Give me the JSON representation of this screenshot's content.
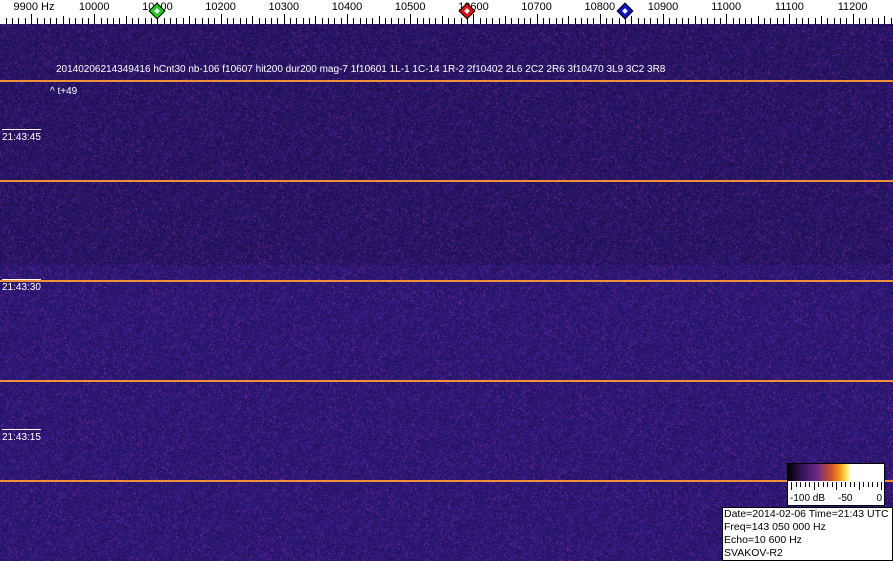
{
  "ruler": {
    "unit_label": "9900 Hz",
    "tick_labels": [
      "10000",
      "10100",
      "10200",
      "10300",
      "10400",
      "10500",
      "10600",
      "10700",
      "10800",
      "10900",
      "11000",
      "11100",
      "11200"
    ],
    "markers": [
      {
        "name": "green-marker",
        "freq_hz": 10100,
        "color": "#22cc22"
      },
      {
        "name": "red-marker",
        "freq_hz": 10590,
        "color": "#dd1111"
      },
      {
        "name": "blue-marker",
        "freq_hz": 10840,
        "color": "#1111cc"
      }
    ]
  },
  "spectrogram": {
    "detection_line": "20140206214349416 hCnt30 nb-106 f10607 hit200 dur200 mag-7 1f10601 1L-1 1C-14 1R-2 2f10402 2L6 2C2 2R6 3f10470 3L9 3C2 3R8",
    "offset_label": "^ t+49",
    "time_labels": [
      "21:43:45",
      "21:43:30",
      "21:43:15"
    ],
    "line_color": "#f0903a"
  },
  "scale": {
    "min_label": "-100 dB",
    "mid_label": "-50",
    "max_label": "0"
  },
  "info": {
    "date_time": "Date=2014-02-06 Time=21:43 UTC",
    "freq": "Freq=143 050 000 Hz",
    "echo": "Echo=10 600 Hz",
    "station": "SVAKOV-R2"
  }
}
